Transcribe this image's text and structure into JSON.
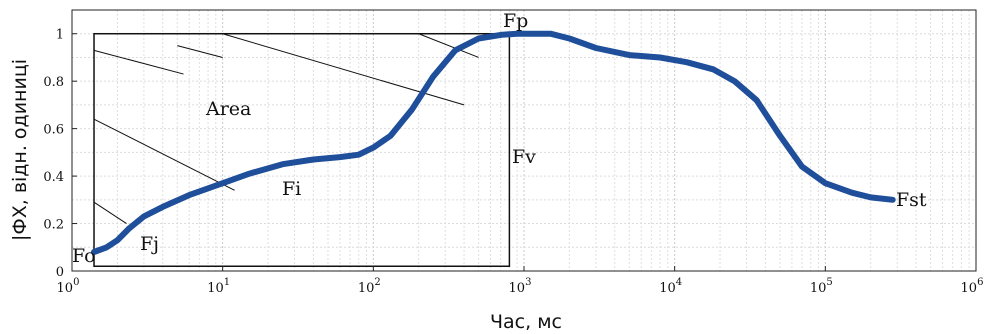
{
  "chart_data": {
    "type": "line",
    "xscale": "log",
    "xlim": [
      1,
      1000000
    ],
    "ylim": [
      0,
      1.1
    ],
    "grid": true,
    "xlabel": "Час, мс",
    "ylabel": "|ФХ, відн. одиниці",
    "x_tick_labels": [
      {
        "base": "10",
        "exp": "0"
      },
      {
        "base": "10",
        "exp": "1"
      },
      {
        "base": "10",
        "exp": "2"
      },
      {
        "base": "10",
        "exp": "3"
      },
      {
        "base": "10",
        "exp": "4"
      },
      {
        "base": "10",
        "exp": "5"
      },
      {
        "base": "10",
        "exp": "6"
      }
    ],
    "y_tick_labels": [
      "0",
      "0.2",
      "0.4",
      "0.6",
      "0.8",
      "1"
    ],
    "series": [
      {
        "color": "#1f4e9a",
        "x": [
          1.4,
          1.7,
          2.0,
          2.4,
          3.0,
          4.0,
          6.0,
          10,
          15,
          25,
          40,
          60,
          80,
          100,
          130,
          180,
          250,
          350,
          500,
          700,
          900,
          1000,
          1500,
          2000,
          3000,
          5000,
          8000,
          12000,
          18000,
          25000,
          35000,
          50000,
          70000,
          100000,
          150000,
          200000,
          280000
        ],
        "y": [
          0.08,
          0.1,
          0.13,
          0.18,
          0.23,
          0.27,
          0.32,
          0.37,
          0.41,
          0.45,
          0.47,
          0.48,
          0.49,
          0.52,
          0.57,
          0.68,
          0.82,
          0.93,
          0.98,
          0.995,
          1.0,
          1.0,
          1.0,
          0.98,
          0.94,
          0.91,
          0.9,
          0.88,
          0.85,
          0.8,
          0.72,
          0.57,
          0.44,
          0.37,
          0.33,
          0.31,
          0.3
        ]
      }
    ],
    "annotations": {
      "fo": "Fo",
      "fj": "Fj",
      "fi": "Fi",
      "fp": "Fp",
      "fv": "Fv",
      "fst": "Fst",
      "area": "Area"
    },
    "area_box": {
      "x0": 1.4,
      "x1": 800,
      "y0": 0.02,
      "y1": 1.0
    }
  }
}
